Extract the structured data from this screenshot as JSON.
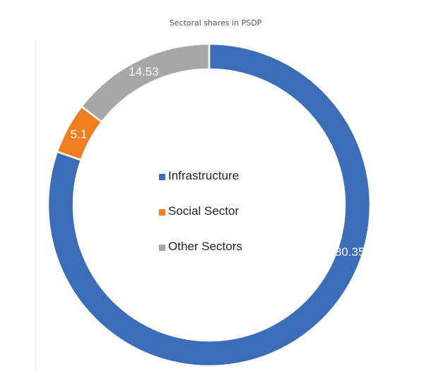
{
  "chart_data": {
    "type": "pie",
    "style": "donut",
    "title": "Sectoral shares in PSDP",
    "categories": [
      "Infrastructure",
      "Social Sector",
      "Other Sectors"
    ],
    "values": [
      80.35,
      5.1,
      14.53
    ],
    "labels": [
      "80.35",
      "5.1",
      "14.53"
    ],
    "colors": [
      "#3C6DB8",
      "#F07F21",
      "#A6A7A6"
    ],
    "legend": {
      "placement": "center",
      "entries": [
        "Infrastructure",
        "Social Sector",
        "Other Sectors"
      ]
    }
  }
}
